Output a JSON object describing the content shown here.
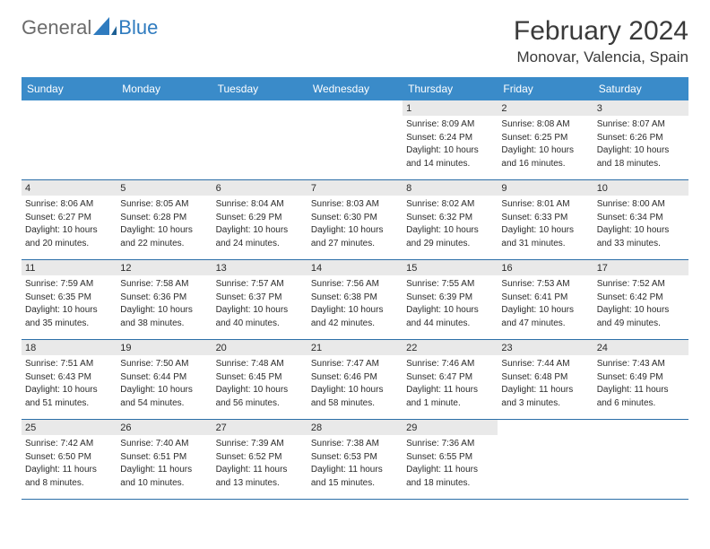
{
  "brand": {
    "word1": "General",
    "word2": "Blue"
  },
  "title": "February 2024",
  "location": "Monovar, Valencia, Spain",
  "colors": {
    "header_bg": "#3a8bc9",
    "header_text": "#ffffff",
    "daynum_bg": "#e9e9e9",
    "text": "#2b2b2b",
    "row_divider": "#2c6fa8",
    "logo_gray": "#6b6b6b",
    "logo_blue": "#2f7bbf",
    "page_bg": "#ffffff"
  },
  "weekdays": [
    "Sunday",
    "Monday",
    "Tuesday",
    "Wednesday",
    "Thursday",
    "Friday",
    "Saturday"
  ],
  "weeks": [
    [
      {
        "empty": true
      },
      {
        "empty": true
      },
      {
        "empty": true
      },
      {
        "empty": true
      },
      {
        "day": "1",
        "sunrise": "Sunrise: 8:09 AM",
        "sunset": "Sunset: 6:24 PM",
        "daylight1": "Daylight: 10 hours",
        "daylight2": "and 14 minutes."
      },
      {
        "day": "2",
        "sunrise": "Sunrise: 8:08 AM",
        "sunset": "Sunset: 6:25 PM",
        "daylight1": "Daylight: 10 hours",
        "daylight2": "and 16 minutes."
      },
      {
        "day": "3",
        "sunrise": "Sunrise: 8:07 AM",
        "sunset": "Sunset: 6:26 PM",
        "daylight1": "Daylight: 10 hours",
        "daylight2": "and 18 minutes."
      }
    ],
    [
      {
        "day": "4",
        "sunrise": "Sunrise: 8:06 AM",
        "sunset": "Sunset: 6:27 PM",
        "daylight1": "Daylight: 10 hours",
        "daylight2": "and 20 minutes."
      },
      {
        "day": "5",
        "sunrise": "Sunrise: 8:05 AM",
        "sunset": "Sunset: 6:28 PM",
        "daylight1": "Daylight: 10 hours",
        "daylight2": "and 22 minutes."
      },
      {
        "day": "6",
        "sunrise": "Sunrise: 8:04 AM",
        "sunset": "Sunset: 6:29 PM",
        "daylight1": "Daylight: 10 hours",
        "daylight2": "and 24 minutes."
      },
      {
        "day": "7",
        "sunrise": "Sunrise: 8:03 AM",
        "sunset": "Sunset: 6:30 PM",
        "daylight1": "Daylight: 10 hours",
        "daylight2": "and 27 minutes."
      },
      {
        "day": "8",
        "sunrise": "Sunrise: 8:02 AM",
        "sunset": "Sunset: 6:32 PM",
        "daylight1": "Daylight: 10 hours",
        "daylight2": "and 29 minutes."
      },
      {
        "day": "9",
        "sunrise": "Sunrise: 8:01 AM",
        "sunset": "Sunset: 6:33 PM",
        "daylight1": "Daylight: 10 hours",
        "daylight2": "and 31 minutes."
      },
      {
        "day": "10",
        "sunrise": "Sunrise: 8:00 AM",
        "sunset": "Sunset: 6:34 PM",
        "daylight1": "Daylight: 10 hours",
        "daylight2": "and 33 minutes."
      }
    ],
    [
      {
        "day": "11",
        "sunrise": "Sunrise: 7:59 AM",
        "sunset": "Sunset: 6:35 PM",
        "daylight1": "Daylight: 10 hours",
        "daylight2": "and 35 minutes."
      },
      {
        "day": "12",
        "sunrise": "Sunrise: 7:58 AM",
        "sunset": "Sunset: 6:36 PM",
        "daylight1": "Daylight: 10 hours",
        "daylight2": "and 38 minutes."
      },
      {
        "day": "13",
        "sunrise": "Sunrise: 7:57 AM",
        "sunset": "Sunset: 6:37 PM",
        "daylight1": "Daylight: 10 hours",
        "daylight2": "and 40 minutes."
      },
      {
        "day": "14",
        "sunrise": "Sunrise: 7:56 AM",
        "sunset": "Sunset: 6:38 PM",
        "daylight1": "Daylight: 10 hours",
        "daylight2": "and 42 minutes."
      },
      {
        "day": "15",
        "sunrise": "Sunrise: 7:55 AM",
        "sunset": "Sunset: 6:39 PM",
        "daylight1": "Daylight: 10 hours",
        "daylight2": "and 44 minutes."
      },
      {
        "day": "16",
        "sunrise": "Sunrise: 7:53 AM",
        "sunset": "Sunset: 6:41 PM",
        "daylight1": "Daylight: 10 hours",
        "daylight2": "and 47 minutes."
      },
      {
        "day": "17",
        "sunrise": "Sunrise: 7:52 AM",
        "sunset": "Sunset: 6:42 PM",
        "daylight1": "Daylight: 10 hours",
        "daylight2": "and 49 minutes."
      }
    ],
    [
      {
        "day": "18",
        "sunrise": "Sunrise: 7:51 AM",
        "sunset": "Sunset: 6:43 PM",
        "daylight1": "Daylight: 10 hours",
        "daylight2": "and 51 minutes."
      },
      {
        "day": "19",
        "sunrise": "Sunrise: 7:50 AM",
        "sunset": "Sunset: 6:44 PM",
        "daylight1": "Daylight: 10 hours",
        "daylight2": "and 54 minutes."
      },
      {
        "day": "20",
        "sunrise": "Sunrise: 7:48 AM",
        "sunset": "Sunset: 6:45 PM",
        "daylight1": "Daylight: 10 hours",
        "daylight2": "and 56 minutes."
      },
      {
        "day": "21",
        "sunrise": "Sunrise: 7:47 AM",
        "sunset": "Sunset: 6:46 PM",
        "daylight1": "Daylight: 10 hours",
        "daylight2": "and 58 minutes."
      },
      {
        "day": "22",
        "sunrise": "Sunrise: 7:46 AM",
        "sunset": "Sunset: 6:47 PM",
        "daylight1": "Daylight: 11 hours",
        "daylight2": "and 1 minute."
      },
      {
        "day": "23",
        "sunrise": "Sunrise: 7:44 AM",
        "sunset": "Sunset: 6:48 PM",
        "daylight1": "Daylight: 11 hours",
        "daylight2": "and 3 minutes."
      },
      {
        "day": "24",
        "sunrise": "Sunrise: 7:43 AM",
        "sunset": "Sunset: 6:49 PM",
        "daylight1": "Daylight: 11 hours",
        "daylight2": "and 6 minutes."
      }
    ],
    [
      {
        "day": "25",
        "sunrise": "Sunrise: 7:42 AM",
        "sunset": "Sunset: 6:50 PM",
        "daylight1": "Daylight: 11 hours",
        "daylight2": "and 8 minutes."
      },
      {
        "day": "26",
        "sunrise": "Sunrise: 7:40 AM",
        "sunset": "Sunset: 6:51 PM",
        "daylight1": "Daylight: 11 hours",
        "daylight2": "and 10 minutes."
      },
      {
        "day": "27",
        "sunrise": "Sunrise: 7:39 AM",
        "sunset": "Sunset: 6:52 PM",
        "daylight1": "Daylight: 11 hours",
        "daylight2": "and 13 minutes."
      },
      {
        "day": "28",
        "sunrise": "Sunrise: 7:38 AM",
        "sunset": "Sunset: 6:53 PM",
        "daylight1": "Daylight: 11 hours",
        "daylight2": "and 15 minutes."
      },
      {
        "day": "29",
        "sunrise": "Sunrise: 7:36 AM",
        "sunset": "Sunset: 6:55 PM",
        "daylight1": "Daylight: 11 hours",
        "daylight2": "and 18 minutes."
      },
      {
        "empty": true
      },
      {
        "empty": true
      }
    ]
  ]
}
